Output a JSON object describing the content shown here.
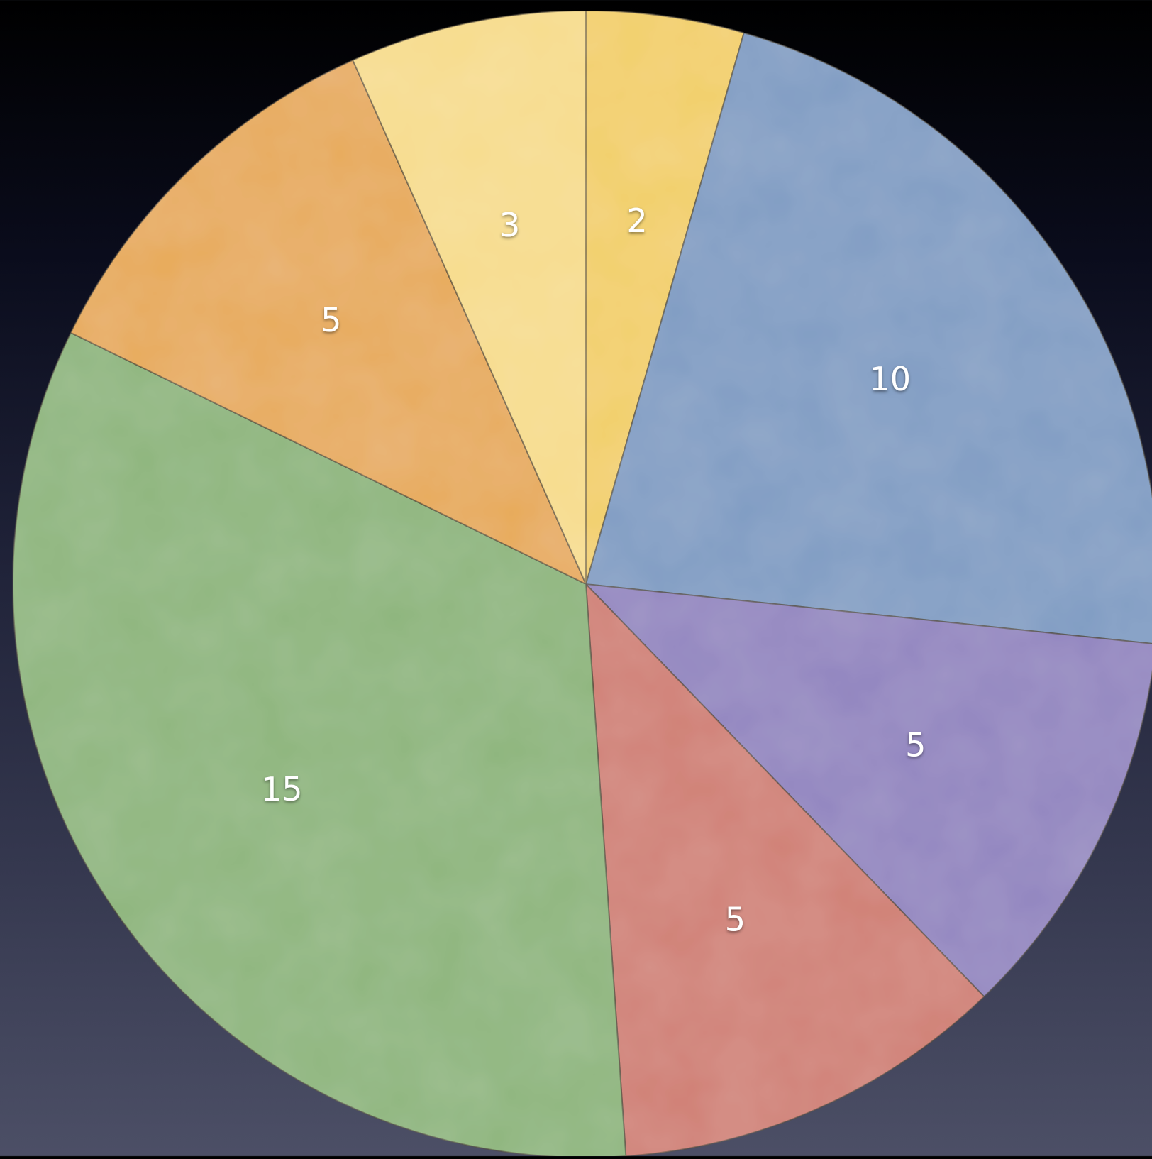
{
  "chart_data": {
    "type": "pie",
    "start_angle_deg": 0,
    "direction": "clockwise",
    "slices": [
      {
        "label": "2",
        "value": 2,
        "color": "#f2cf68"
      },
      {
        "label": "10",
        "value": 10,
        "color": "#7f9cc3"
      },
      {
        "label": "5",
        "value": 5,
        "color": "#9184bf"
      },
      {
        "label": "5",
        "value": 5,
        "color": "#d07f74"
      },
      {
        "label": "15",
        "value": 15,
        "color": "#8db57c"
      },
      {
        "label": "5",
        "value": 5,
        "color": "#e7aa58"
      },
      {
        "label": "3",
        "value": 3,
        "color": "#f7dc8c"
      }
    ]
  }
}
